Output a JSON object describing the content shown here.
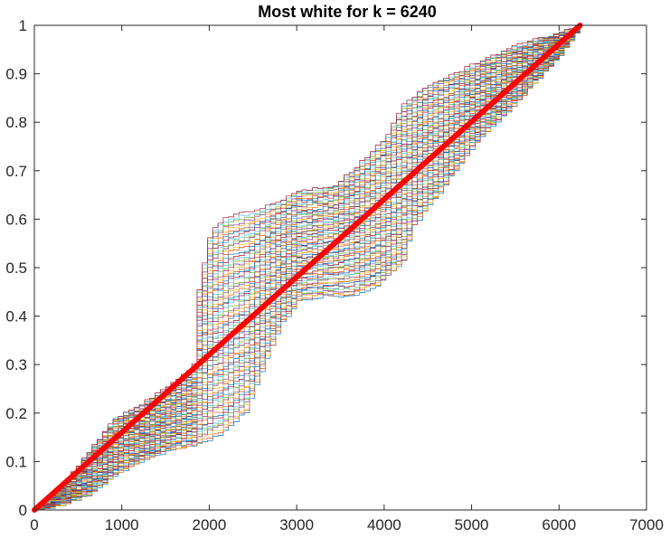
{
  "chart_data": {
    "type": "line",
    "title": "Most white for k = 6240",
    "xlabel": "",
    "ylabel": "",
    "xlim": [
      0,
      7000
    ],
    "ylim": [
      0,
      1
    ],
    "x_ticks": [
      0,
      1000,
      2000,
      3000,
      4000,
      5000,
      6000,
      7000
    ],
    "y_ticks": [
      0,
      0.1,
      0.2,
      0.3,
      0.4,
      0.5,
      0.6,
      0.7,
      0.8,
      0.9,
      1
    ],
    "x_tick_labels": [
      "0",
      "1000",
      "2000",
      "3000",
      "4000",
      "5000",
      "6000",
      "7000"
    ],
    "y_tick_labels": [
      "0",
      "0.1",
      "0.2",
      "0.3",
      "0.4",
      "0.5",
      "0.6",
      "0.7",
      "0.8",
      "0.9",
      "1"
    ],
    "grid": false,
    "legend": "none",
    "reference_line": {
      "color": "#ff0000",
      "points": [
        [
          0,
          0
        ],
        [
          6240,
          1
        ]
      ]
    },
    "envelope_upper": [
      [
        0,
        0
      ],
      [
        300,
        0.05
      ],
      [
        600,
        0.12
      ],
      [
        900,
        0.19
      ],
      [
        1200,
        0.22
      ],
      [
        1500,
        0.255
      ],
      [
        1800,
        0.3
      ],
      [
        1850,
        0.45
      ],
      [
        2000,
        0.58
      ],
      [
        2200,
        0.61
      ],
      [
        2500,
        0.62
      ],
      [
        2800,
        0.64
      ],
      [
        3000,
        0.66
      ],
      [
        3400,
        0.67
      ],
      [
        3600,
        0.7
      ],
      [
        4000,
        0.77
      ],
      [
        4200,
        0.84
      ],
      [
        4500,
        0.88
      ],
      [
        5000,
        0.92
      ],
      [
        5500,
        0.96
      ],
      [
        6000,
        0.985
      ],
      [
        6240,
        1
      ]
    ],
    "envelope_lower": [
      [
        0,
        0
      ],
      [
        300,
        0.01
      ],
      [
        600,
        0.03
      ],
      [
        900,
        0.07
      ],
      [
        1200,
        0.1
      ],
      [
        1500,
        0.12
      ],
      [
        1800,
        0.13
      ],
      [
        2100,
        0.15
      ],
      [
        2400,
        0.2
      ],
      [
        2550,
        0.27
      ],
      [
        2800,
        0.38
      ],
      [
        3000,
        0.43
      ],
      [
        3300,
        0.44
      ],
      [
        3600,
        0.44
      ],
      [
        3900,
        0.46
      ],
      [
        4200,
        0.51
      ],
      [
        4300,
        0.58
      ],
      [
        4600,
        0.65
      ],
      [
        5000,
        0.75
      ],
      [
        5500,
        0.84
      ],
      [
        6000,
        0.94
      ],
      [
        6240,
        1
      ]
    ],
    "series_count": 70,
    "series_palette": [
      "#0072bd",
      "#d95319",
      "#edb120",
      "#7e2f8e",
      "#77ac30",
      "#4dbeee",
      "#a2142f"
    ]
  }
}
